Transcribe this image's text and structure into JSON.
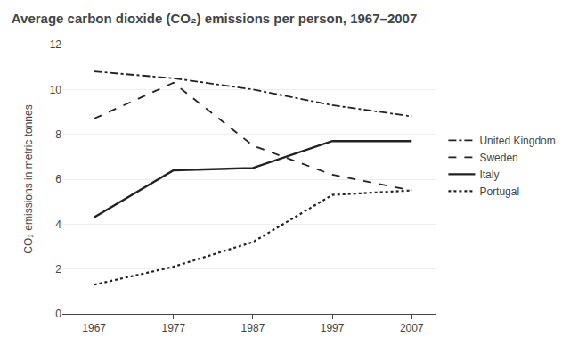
{
  "chart_data": {
    "type": "line",
    "title": "Average carbon dioxide (CO₂) emissions per person, 1967–2007",
    "y_label": "CO₂ emissions in metric tonnes",
    "x": [
      1967,
      1977,
      1987,
      1997,
      2007
    ],
    "series": [
      {
        "name": "United Kingdom",
        "values": [
          10.8,
          10.5,
          10.0,
          9.3,
          8.8
        ],
        "color": "#222222",
        "line_style": "dashdot"
      },
      {
        "name": "Sweden",
        "values": [
          8.7,
          10.3,
          7.5,
          6.2,
          5.5
        ],
        "color": "#222222",
        "line_style": "dashed"
      },
      {
        "name": "Italy",
        "values": [
          4.3,
          6.4,
          6.5,
          7.7,
          7.7
        ],
        "color": "#222222",
        "line_style": "solid"
      },
      {
        "name": "Portugal",
        "values": [
          1.3,
          2.1,
          3.2,
          5.3,
          5.5
        ],
        "color": "#222222",
        "line_style": "dotted"
      }
    ],
    "xlim": [
      1963,
      2010
    ],
    "xticks": [
      1967,
      1977,
      1987,
      1997,
      2007
    ],
    "ylim": [
      0,
      12
    ],
    "yticks": [
      0,
      2,
      4,
      6,
      8,
      10,
      12
    ],
    "grid": "y",
    "legend": "right"
  }
}
